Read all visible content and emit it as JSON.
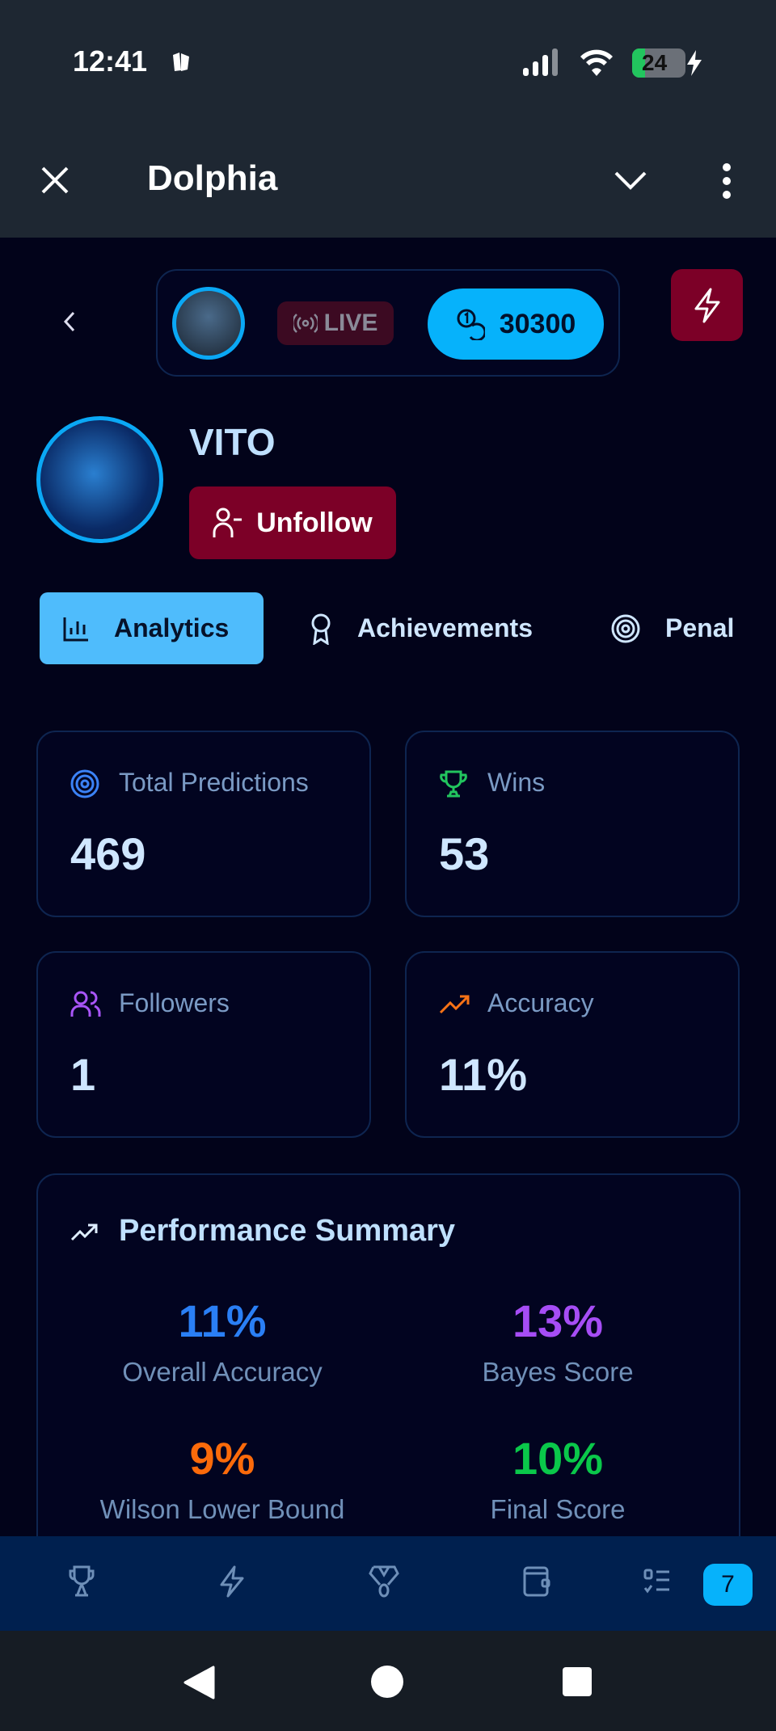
{
  "status_bar": {
    "time": "12:41",
    "battery": "24"
  },
  "app_bar": {
    "title": "Dolphia",
    "close_icon": "close-icon",
    "collapse_icon": "chevron-down-icon",
    "menu_icon": "more-vertical-icon"
  },
  "header_pill": {
    "live_label": "LIVE",
    "coins": "30300"
  },
  "profile": {
    "name": "VITO",
    "unfollow_label": "Unfollow"
  },
  "tabs": [
    {
      "label": "Analytics",
      "icon": "bar-chart-icon",
      "active": true
    },
    {
      "label": "Achievements",
      "icon": "award-icon"
    },
    {
      "label": "Penal",
      "icon": "target-icon"
    }
  ],
  "stats": [
    {
      "label": "Total Predictions",
      "value": "469",
      "icon": "target-icon",
      "color": "#3b82f6"
    },
    {
      "label": "Wins",
      "value": "53",
      "icon": "trophy-icon",
      "color": "#22c55e"
    },
    {
      "label": "Followers",
      "value": "1",
      "icon": "users-icon",
      "color": "#a855f7"
    },
    {
      "label": "Accuracy",
      "value": "11%",
      "icon": "trending-up-icon",
      "color": "#f97316"
    }
  ],
  "performance": {
    "title": "Performance Summary",
    "metrics": [
      {
        "value": "11%",
        "label": "Overall Accuracy",
        "color": "#2a7ff5"
      },
      {
        "value": "13%",
        "label": "Bayes Score",
        "color": "#a64df5"
      },
      {
        "value": "9%",
        "label": "Wilson Lower Bound",
        "color": "#fb6a0a"
      },
      {
        "value": "10%",
        "label": "Final Score",
        "color": "#0ac84a"
      }
    ]
  },
  "bottom_nav": {
    "items": [
      "trophy-icon",
      "zap-icon",
      "medal-icon",
      "wallet-icon",
      "checklist-icon"
    ],
    "badge": "7"
  }
}
